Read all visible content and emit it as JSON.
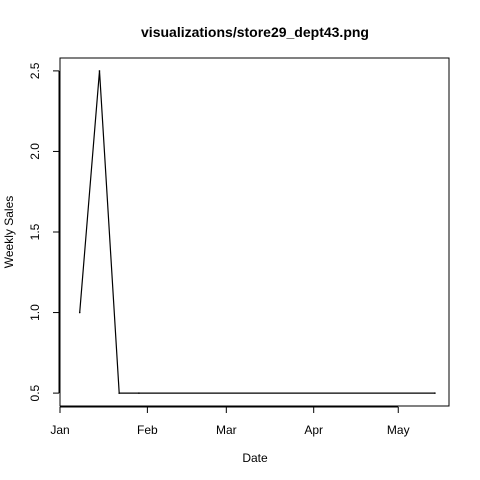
{
  "chart_data": {
    "type": "line",
    "title": "visualizations/store29_dept43.png",
    "xlabel": "Date",
    "ylabel": "Weekly Sales",
    "x": [
      "2010-01-08",
      "2010-01-15",
      "2010-01-22",
      "2010-01-29",
      "2010-05-14"
    ],
    "values": [
      1.0,
      2.5,
      0.5,
      0.5,
      0.5
    ],
    "xlim": [
      "2010-01-01",
      "2010-05-19"
    ],
    "ylim": [
      0.5,
      2.5
    ],
    "x_ticks": [
      {
        "date": "2010-01-01",
        "label": "Jan"
      },
      {
        "date": "2010-02-01",
        "label": "Feb"
      },
      {
        "date": "2010-03-01",
        "label": "Mar"
      },
      {
        "date": "2010-04-01",
        "label": "Apr"
      },
      {
        "date": "2010-05-01",
        "label": "May"
      }
    ],
    "y_ticks": [
      {
        "value": 0.5,
        "label": "0.5"
      },
      {
        "value": 1.0,
        "label": "1.0"
      },
      {
        "value": 1.5,
        "label": "1.5"
      },
      {
        "value": 2.0,
        "label": "2.0"
      },
      {
        "value": 2.5,
        "label": "2.5"
      }
    ],
    "grid": false,
    "line_color": "#000000"
  }
}
